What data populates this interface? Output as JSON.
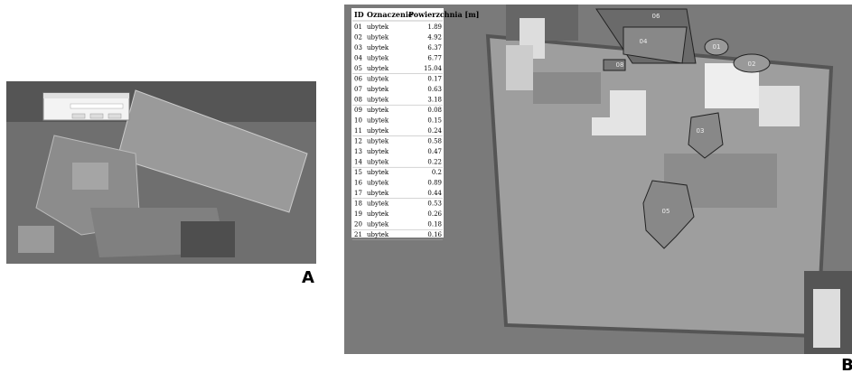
{
  "panels": {
    "a": {
      "label": "A"
    },
    "b": {
      "label": "B",
      "table": {
        "header": [
          "ID",
          "Oznaczenie",
          "Powierzchnia [m]"
        ],
        "rows": [
          [
            "01",
            "ubytek",
            "1.89"
          ],
          [
            "02",
            "ubytek",
            "4.92"
          ],
          [
            "03",
            "ubytek",
            "6.37"
          ],
          [
            "04",
            "ubytek",
            "6.77"
          ],
          [
            "05",
            "ubytek",
            "15.04"
          ],
          [
            "06",
            "ubytek",
            "0.17"
          ],
          [
            "07",
            "ubytek",
            "0.63"
          ],
          [
            "08",
            "ubytek",
            "3.18"
          ],
          [
            "09",
            "ubytek",
            "0.08"
          ],
          [
            "10",
            "ubytek",
            "0.15"
          ],
          [
            "11",
            "ubytek",
            "0.24"
          ],
          [
            "12",
            "ubytek",
            "0.58"
          ],
          [
            "13",
            "ubytek",
            "0.47"
          ],
          [
            "14",
            "ubytek",
            "0.22"
          ],
          [
            "15",
            "ubytek",
            "0.2"
          ],
          [
            "16",
            "ubytek",
            "0.89"
          ],
          [
            "17",
            "ubytek",
            "0.44"
          ],
          [
            "18",
            "ubytek",
            "0.53"
          ],
          [
            "19",
            "ubytek",
            "0.26"
          ],
          [
            "20",
            "ubytek",
            "0.18"
          ],
          [
            "21",
            "ubytek",
            "0.16"
          ]
        ]
      },
      "map_labels": [
        "01",
        "02",
        "03",
        "04",
        "05",
        "06",
        "08"
      ]
    }
  }
}
